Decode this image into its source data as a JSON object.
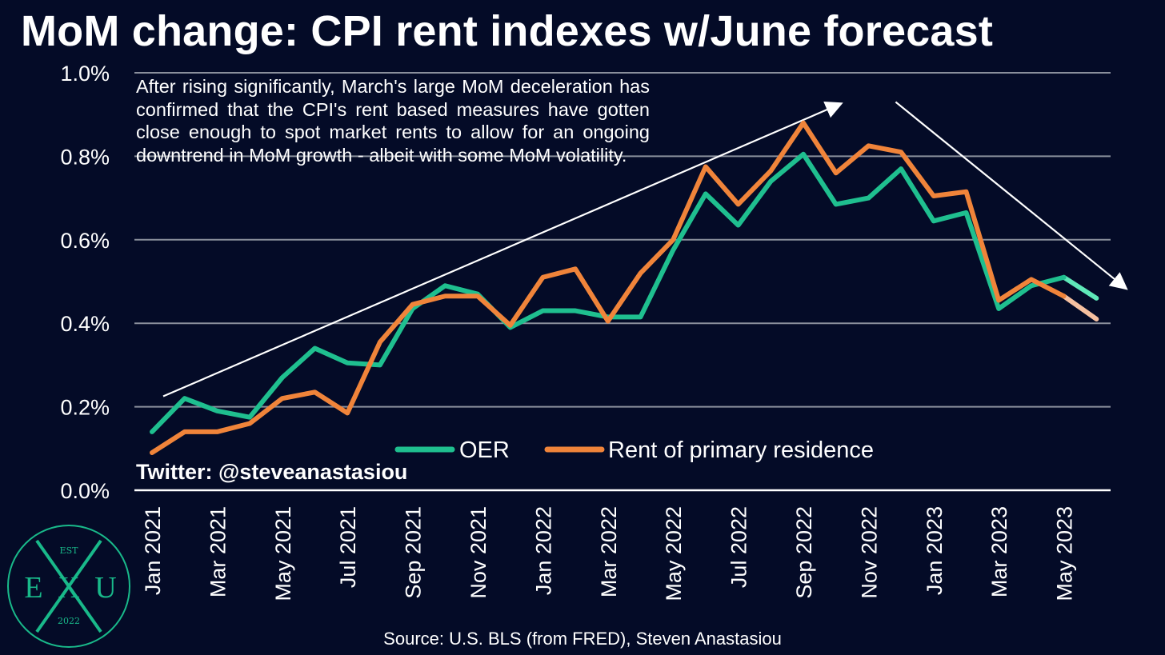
{
  "title": "MoM change: CPI rent indexes w/June forecast",
  "annotation": "After rising significantly, March's large MoM deceleration has confirmed that the CPI's rent based measures have gotten close enough to spot market rents to allow for an ongoing downtrend in MoM growth - albeit with some MoM volatility.",
  "twitter": "Twitter: @steveanastasiou",
  "source": "Source: U.S. BLS (from FRED), Steven Anastasiou",
  "logo": {
    "top": "EST",
    "left": "E",
    "center": "X",
    "right": "U",
    "bottom": "2022"
  },
  "colors": {
    "background": "#040b27",
    "oer": "#1fbf8f",
    "oer_forecast": "#5fe8b8",
    "rent": "#f0843a",
    "rent_forecast": "#f5c0a0",
    "grid": "#8a8f9c",
    "logo": "#19b98a"
  },
  "chart_data": {
    "type": "line",
    "title": "MoM change: CPI rent indexes w/June forecast",
    "xlabel": "",
    "ylabel": "",
    "ylim": [
      0,
      1.0
    ],
    "yticks": [
      0.0,
      0.2,
      0.4,
      0.6,
      0.8,
      1.0
    ],
    "ytick_labels": [
      "0.0%",
      "0.2%",
      "0.4%",
      "0.6%",
      "0.8%",
      "1.0%"
    ],
    "x": [
      "Jan 2021",
      "Feb 2021",
      "Mar 2021",
      "Apr 2021",
      "May 2021",
      "Jun 2021",
      "Jul 2021",
      "Aug 2021",
      "Sep 2021",
      "Oct 2021",
      "Nov 2021",
      "Dec 2021",
      "Jan 2022",
      "Feb 2022",
      "Mar 2022",
      "Apr 2022",
      "May 2022",
      "Jun 2022",
      "Jul 2022",
      "Aug 2022",
      "Sep 2022",
      "Oct 2022",
      "Nov 2022",
      "Dec 2022",
      "Jan 2023",
      "Feb 2023",
      "Mar 2023",
      "Apr 2023",
      "May 2023",
      "Jun 2023"
    ],
    "xtick_labels": [
      "Jan 2021",
      "Mar 2021",
      "May 2021",
      "Jul 2021",
      "Sep 2021",
      "Nov 2021",
      "Jan 2022",
      "Mar 2022",
      "May 2022",
      "Jul 2022",
      "Sep 2022",
      "Nov 2022",
      "Jan 2023",
      "Mar 2023",
      "May 2023"
    ],
    "series": [
      {
        "name": "OER",
        "values": [
          0.14,
          0.22,
          0.19,
          0.175,
          0.27,
          0.34,
          0.305,
          0.3,
          0.435,
          0.49,
          0.47,
          0.39,
          0.43,
          0.43,
          0.415,
          0.415,
          0.575,
          0.71,
          0.635,
          0.74,
          0.805,
          0.685,
          0.7,
          0.77,
          0.645,
          0.665,
          0.435,
          0.49,
          0.51,
          0.46
        ],
        "forecast_from": "May 2023"
      },
      {
        "name": "Rent of primary residence",
        "values": [
          0.09,
          0.14,
          0.14,
          0.16,
          0.22,
          0.235,
          0.185,
          0.355,
          0.445,
          0.465,
          0.465,
          0.395,
          0.51,
          0.53,
          0.405,
          0.52,
          0.6,
          0.775,
          0.685,
          0.765,
          0.88,
          0.76,
          0.825,
          0.81,
          0.705,
          0.715,
          0.455,
          0.505,
          0.465,
          0.41
        ],
        "forecast_from": "May 2023"
      }
    ],
    "trend_arrows": [
      {
        "direction": "up",
        "from": [
          "Jan 2021",
          0.225
        ],
        "to": [
          "Oct 2022",
          0.925
        ]
      },
      {
        "direction": "down",
        "from": [
          "Nov 2022",
          0.93
        ],
        "to": [
          "Jun 2023",
          0.485
        ]
      }
    ],
    "grid": true,
    "legend": "bottom-center"
  }
}
